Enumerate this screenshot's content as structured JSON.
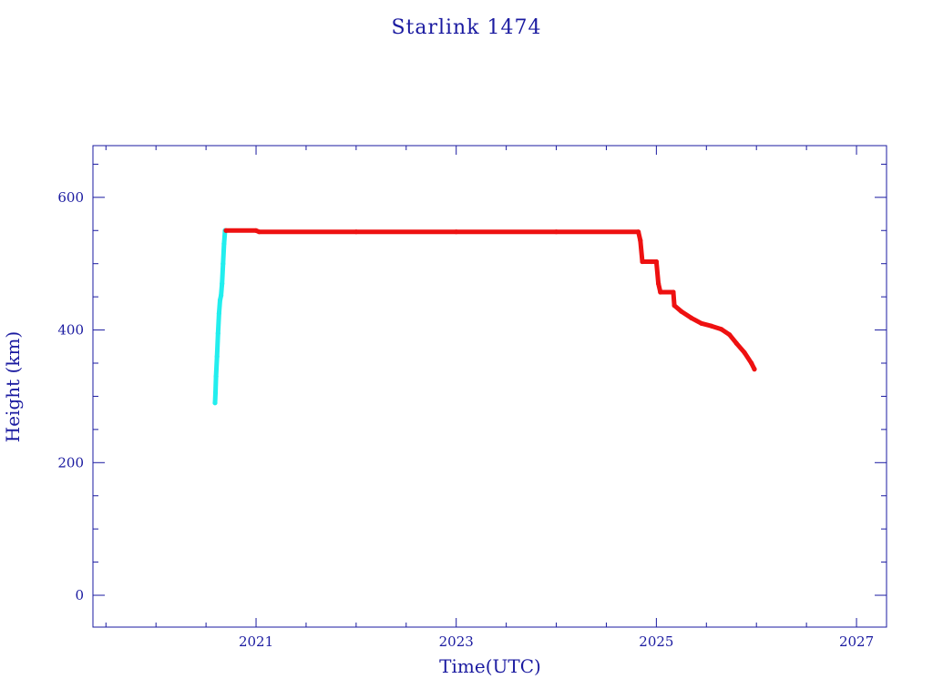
{
  "chart_data": {
    "type": "scatter",
    "title": "Starlink 1474",
    "xlabel": "Time(UTC)",
    "ylabel": "Height (km)",
    "xlim": [
      2019.37,
      2027.3
    ],
    "ylim": [
      -48,
      678
    ],
    "x_ticks": [
      2021,
      2023,
      2025,
      2027
    ],
    "y_ticks": [
      0,
      200,
      400,
      600
    ],
    "grid": false,
    "legend": "none",
    "colors": {
      "frame": "#1a1aa0",
      "text": "#1a1aa0",
      "raising": "#22eeee",
      "operational": "#ee1111"
    },
    "series": [
      {
        "color": "#22eeee",
        "points": [
          [
            2020.59,
            290
          ],
          [
            2020.595,
            305
          ],
          [
            2020.6,
            330
          ],
          [
            2020.61,
            360
          ],
          [
            2020.62,
            395
          ],
          [
            2020.63,
            425
          ],
          [
            2020.64,
            445
          ],
          [
            2020.65,
            452
          ],
          [
            2020.66,
            470
          ],
          [
            2020.67,
            500
          ],
          [
            2020.68,
            530
          ],
          [
            2020.69,
            550
          ]
        ]
      },
      {
        "color": "#ee1111",
        "points": [
          [
            2020.7,
            550
          ],
          [
            2021.0,
            550
          ],
          [
            2021.03,
            548
          ],
          [
            2022.0,
            548
          ],
          [
            2023.0,
            548
          ],
          [
            2024.0,
            548
          ],
          [
            2024.82,
            548
          ],
          [
            2024.84,
            535
          ],
          [
            2024.86,
            503
          ],
          [
            2024.95,
            503
          ],
          [
            2025.0,
            503
          ],
          [
            2025.02,
            470
          ],
          [
            2025.04,
            457
          ],
          [
            2025.17,
            457
          ],
          [
            2025.18,
            437
          ],
          [
            2025.25,
            428
          ],
          [
            2025.35,
            418
          ],
          [
            2025.45,
            410
          ],
          [
            2025.55,
            406
          ],
          [
            2025.65,
            401
          ],
          [
            2025.73,
            393
          ],
          [
            2025.8,
            380
          ],
          [
            2025.88,
            366
          ],
          [
            2025.95,
            350
          ],
          [
            2025.98,
            341
          ]
        ]
      }
    ]
  }
}
